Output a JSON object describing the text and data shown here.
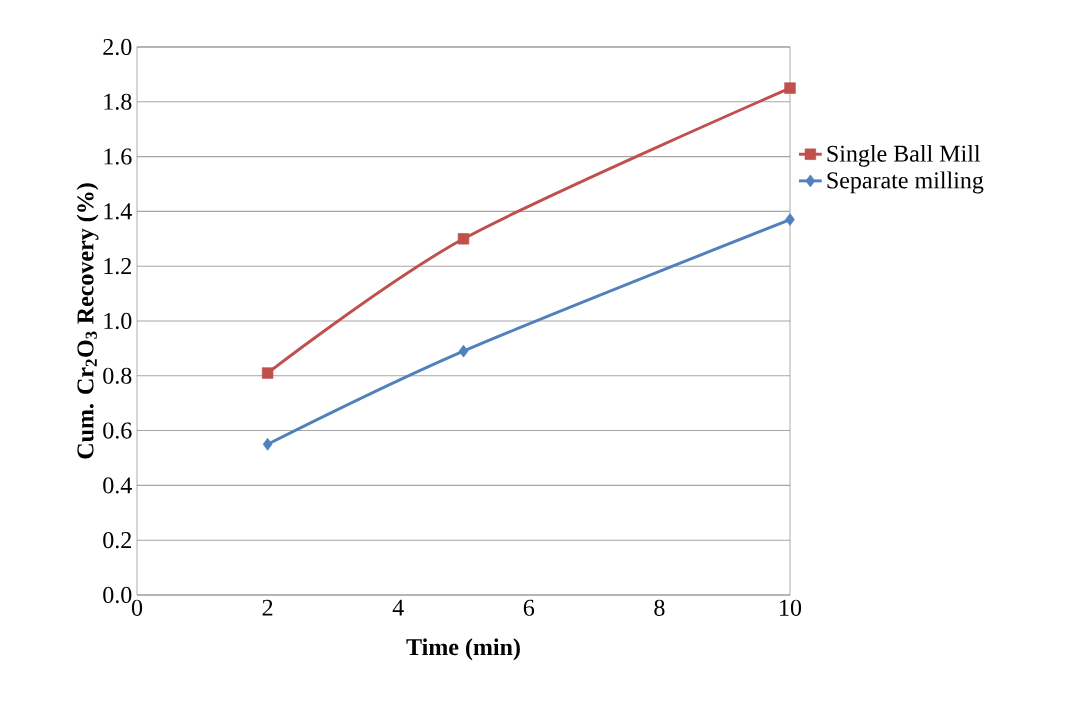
{
  "chart_data": {
    "type": "line",
    "xlabel": "Time (min)",
    "ylabel": "Cum. Cr$_{2}$O$_{3}$ Recovery (%)",
    "xlim": [
      0,
      10
    ],
    "xticks": [
      0,
      2,
      4,
      6,
      8,
      10
    ],
    "ylim": [
      0,
      2.0
    ],
    "yticks": [
      {
        "value": 0,
        "label": "0.0"
      },
      {
        "value": 0.2,
        "label": "0.2"
      },
      {
        "value": 0.4,
        "label": "0.4"
      },
      {
        "value": 0.6,
        "label": "0.6"
      },
      {
        "value": 0.8,
        "label": "0.8"
      },
      {
        "value": 1.0,
        "label": "1.0"
      },
      {
        "value": 1.2,
        "label": "1.2"
      },
      {
        "value": 1.4,
        "label": "1.4"
      },
      {
        "value": 1.6,
        "label": "1.6"
      },
      {
        "value": 1.8,
        "label": "1.8"
      },
      {
        "value": 2.0,
        "label": "2.0"
      }
    ],
    "grid": "y",
    "legend": "right",
    "series": [
      {
        "name": "Single Ball Mill",
        "color": "#c0504d",
        "marker": "square",
        "x": [
          2,
          5,
          10
        ],
        "values": [
          0.81,
          1.3,
          1.85
        ]
      },
      {
        "name": "Separate milling",
        "color": "#4f81bd",
        "marker": "diamond",
        "x": [
          2,
          5,
          10
        ],
        "values": [
          0.55,
          0.89,
          1.37
        ]
      }
    ]
  }
}
